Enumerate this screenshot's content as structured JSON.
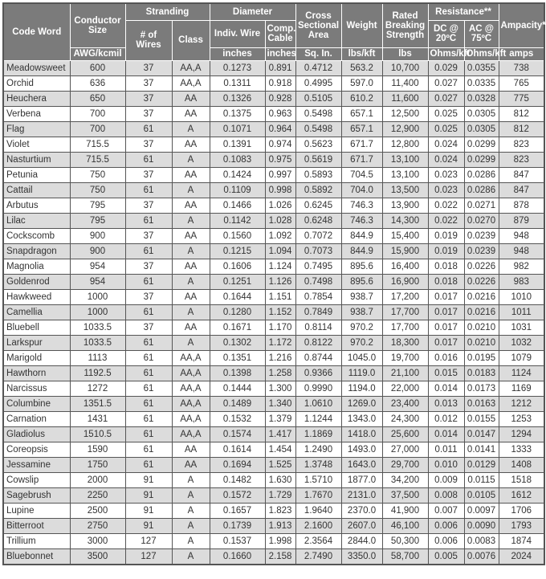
{
  "header": {
    "code_word": "Code Word",
    "conductor_size": "Conductor Size",
    "stranding": "Stranding",
    "wires": "# of Wires",
    "class": "Class",
    "diameter": "Diameter",
    "indiv_wire": "Indiv. Wire",
    "comp_cable": "Comp. Cable",
    "cross_area": "Cross Sectional Area",
    "weight": "Weight",
    "rbs": "Rated Breaking Strength",
    "resistance": "Resistance**",
    "dc": "DC @ 20ºC",
    "ac": "AC @ 75ºC",
    "ampacity": "Ampacity*",
    "units": [
      "AWG/kcmil",
      "inches",
      "inches",
      "Sq. In.",
      "lbs/kft",
      "lbs",
      "Ohms/kft",
      "Ohms/kft",
      "amps"
    ]
  },
  "colors": {
    "header_bg": "#7b7b7b",
    "alt_row": "#dcdcdc"
  },
  "rows": [
    [
      "Meadowsweet",
      "600",
      "37",
      "AA,A",
      "0.1273",
      "0.891",
      "0.4712",
      "563.2",
      "10,700",
      "0.029",
      "0.0355",
      "738"
    ],
    [
      "Orchid",
      "636",
      "37",
      "AA,A",
      "0.1311",
      "0.918",
      "0.4995",
      "597.0",
      "11,400",
      "0.027",
      "0.0335",
      "765"
    ],
    [
      "Heuchera",
      "650",
      "37",
      "AA",
      "0.1326",
      "0.928",
      "0.5105",
      "610.2",
      "11,600",
      "0.027",
      "0.0328",
      "775"
    ],
    [
      "Verbena",
      "700",
      "37",
      "AA",
      "0.1375",
      "0.963",
      "0.5498",
      "657.1",
      "12,500",
      "0.025",
      "0.0305",
      "812"
    ],
    [
      "Flag",
      "700",
      "61",
      "A",
      "0.1071",
      "0.964",
      "0.5498",
      "657.1",
      "12,900",
      "0.025",
      "0.0305",
      "812"
    ],
    [
      "Violet",
      "715.5",
      "37",
      "AA",
      "0.1391",
      "0.974",
      "0.5623",
      "671.7",
      "12,800",
      "0.024",
      "0.0299",
      "823"
    ],
    [
      "Nasturtium",
      "715.5",
      "61",
      "A",
      "0.1083",
      "0.975",
      "0.5619",
      "671.7",
      "13,100",
      "0.024",
      "0.0299",
      "823"
    ],
    [
      "Petunia",
      "750",
      "37",
      "AA",
      "0.1424",
      "0.997",
      "0.5893",
      "704.5",
      "13,100",
      "0.023",
      "0.0286",
      "847"
    ],
    [
      "Cattail",
      "750",
      "61",
      "A",
      "0.1109",
      "0.998",
      "0.5892",
      "704.0",
      "13,500",
      "0.023",
      "0.0286",
      "847"
    ],
    [
      "Arbutus",
      "795",
      "37",
      "AA",
      "0.1466",
      "1.026",
      "0.6245",
      "746.3",
      "13,900",
      "0.022",
      "0.0271",
      "878"
    ],
    [
      "Lilac",
      "795",
      "61",
      "A",
      "0.1142",
      "1.028",
      "0.6248",
      "746.3",
      "14,300",
      "0.022",
      "0.0270",
      "879"
    ],
    [
      "Cockscomb",
      "900",
      "37",
      "AA",
      "0.1560",
      "1.092",
      "0.7072",
      "844.9",
      "15,400",
      "0.019",
      "0.0239",
      "948"
    ],
    [
      "Snapdragon",
      "900",
      "61",
      "A",
      "0.1215",
      "1.094",
      "0.7073",
      "844.9",
      "15,900",
      "0.019",
      "0.0239",
      "948"
    ],
    [
      "Magnolia",
      "954",
      "37",
      "AA",
      "0.1606",
      "1.124",
      "0.7495",
      "895.6",
      "16,400",
      "0.018",
      "0.0226",
      "982"
    ],
    [
      "Goldenrod",
      "954",
      "61",
      "A",
      "0.1251",
      "1.126",
      "0.7498",
      "895.6",
      "16,900",
      "0.018",
      "0.0226",
      "983"
    ],
    [
      "Hawkweed",
      "1000",
      "37",
      "AA",
      "0.1644",
      "1.151",
      "0.7854",
      "938.7",
      "17,200",
      "0.017",
      "0.0216",
      "1010"
    ],
    [
      "Camellia",
      "1000",
      "61",
      "A",
      "0.1280",
      "1.152",
      "0.7849",
      "938.7",
      "17,700",
      "0.017",
      "0.0216",
      "1011"
    ],
    [
      "Bluebell",
      "1033.5",
      "37",
      "AA",
      "0.1671",
      "1.170",
      "0.8114",
      "970.2",
      "17,700",
      "0.017",
      "0.0210",
      "1031"
    ],
    [
      "Larkspur",
      "1033.5",
      "61",
      "A",
      "0.1302",
      "1.172",
      "0.8122",
      "970.2",
      "18,300",
      "0.017",
      "0.0210",
      "1032"
    ],
    [
      "Marigold",
      "1113",
      "61",
      "AA,A",
      "0.1351",
      "1.216",
      "0.8744",
      "1045.0",
      "19,700",
      "0.016",
      "0.0195",
      "1079"
    ],
    [
      "Hawthorn",
      "1192.5",
      "61",
      "AA,A",
      "0.1398",
      "1.258",
      "0.9366",
      "1119.0",
      "21,100",
      "0.015",
      "0.0183",
      "1124"
    ],
    [
      "Narcissus",
      "1272",
      "61",
      "AA,A",
      "0.1444",
      "1.300",
      "0.9990",
      "1194.0",
      "22,000",
      "0.014",
      "0.0173",
      "1169"
    ],
    [
      "Columbine",
      "1351.5",
      "61",
      "AA,A",
      "0.1489",
      "1.340",
      "1.0610",
      "1269.0",
      "23,400",
      "0.013",
      "0.0163",
      "1212"
    ],
    [
      "Carnation",
      "1431",
      "61",
      "AA,A",
      "0.1532",
      "1.379",
      "1.1244",
      "1343.0",
      "24,300",
      "0.012",
      "0.0155",
      "1253"
    ],
    [
      "Gladiolus",
      "1510.5",
      "61",
      "AA,A",
      "0.1574",
      "1.417",
      "1.1869",
      "1418.0",
      "25,600",
      "0.014",
      "0.0147",
      "1294"
    ],
    [
      "Coreopsis",
      "1590",
      "61",
      "AA",
      "0.1614",
      "1.454",
      "1.2490",
      "1493.0",
      "27,000",
      "0.011",
      "0.0141",
      "1333"
    ],
    [
      "Jessamine",
      "1750",
      "61",
      "AA",
      "0.1694",
      "1.525",
      "1.3748",
      "1643.0",
      "29,700",
      "0.010",
      "0.0129",
      "1408"
    ],
    [
      "Cowslip",
      "2000",
      "91",
      "A",
      "0.1482",
      "1.630",
      "1.5710",
      "1877.0",
      "34,200",
      "0.009",
      "0.0115",
      "1518"
    ],
    [
      "Sagebrush",
      "2250",
      "91",
      "A",
      "0.1572",
      "1.729",
      "1.7670",
      "2131.0",
      "37,500",
      "0.008",
      "0.0105",
      "1612"
    ],
    [
      "Lupine",
      "2500",
      "91",
      "A",
      "0.1657",
      "1.823",
      "1.9640",
      "2370.0",
      "41,900",
      "0.007",
      "0.0097",
      "1706"
    ],
    [
      "Bitterroot",
      "2750",
      "91",
      "A",
      "0.1739",
      "1.913",
      "2.1600",
      "2607.0",
      "46,100",
      "0.006",
      "0.0090",
      "1793"
    ],
    [
      "Trillium",
      "3000",
      "127",
      "A",
      "0.1537",
      "1.998",
      "2.3564",
      "2844.0",
      "50,300",
      "0.006",
      "0.0083",
      "1874"
    ],
    [
      "Bluebonnet",
      "3500",
      "127",
      "A",
      "0.1660",
      "2.158",
      "2.7490",
      "3350.0",
      "58,700",
      "0.005",
      "0.0076",
      "2024"
    ]
  ]
}
